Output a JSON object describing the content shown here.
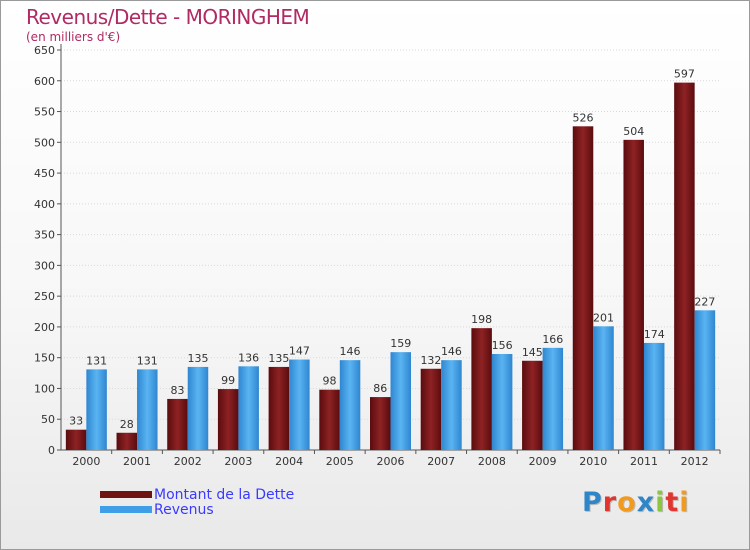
{
  "chart_data": {
    "type": "bar",
    "title": "Revenus/Dette - MORINGHEM",
    "subtitle": "(en milliers d'€)",
    "xlabel": "",
    "ylabel": "",
    "ylim": [
      0,
      650
    ],
    "yticks": [
      0,
      50,
      100,
      150,
      200,
      250,
      300,
      350,
      400,
      450,
      500,
      550,
      600,
      650
    ],
    "categories": [
      "2000",
      "2001",
      "2002",
      "2003",
      "2004",
      "2005",
      "2006",
      "2007",
      "2008",
      "2009",
      "2010",
      "2011",
      "2012"
    ],
    "series": [
      {
        "name": "Montant de la Dette",
        "color": "#7a1416",
        "values": [
          33,
          28,
          83,
          99,
          135,
          98,
          86,
          132,
          198,
          145,
          526,
          504,
          597
        ]
      },
      {
        "name": "Revenus",
        "color": "#3f9fe6",
        "values": [
          131,
          131,
          135,
          136,
          147,
          146,
          159,
          146,
          156,
          166,
          201,
          174,
          227
        ]
      }
    ],
    "legend_position": "bottom-left"
  },
  "logo": {
    "letters": [
      {
        "ch": "P",
        "color": "#2e86c8"
      },
      {
        "ch": "r",
        "color": "#e0362f"
      },
      {
        "ch": "o",
        "color": "#f29a1e"
      },
      {
        "ch": "x",
        "color": "#2e86c8"
      },
      {
        "ch": "i",
        "color": "#8cc63f"
      },
      {
        "ch": "t",
        "color": "#e0362f"
      },
      {
        "ch": "i",
        "color": "#f29a1e"
      }
    ]
  }
}
